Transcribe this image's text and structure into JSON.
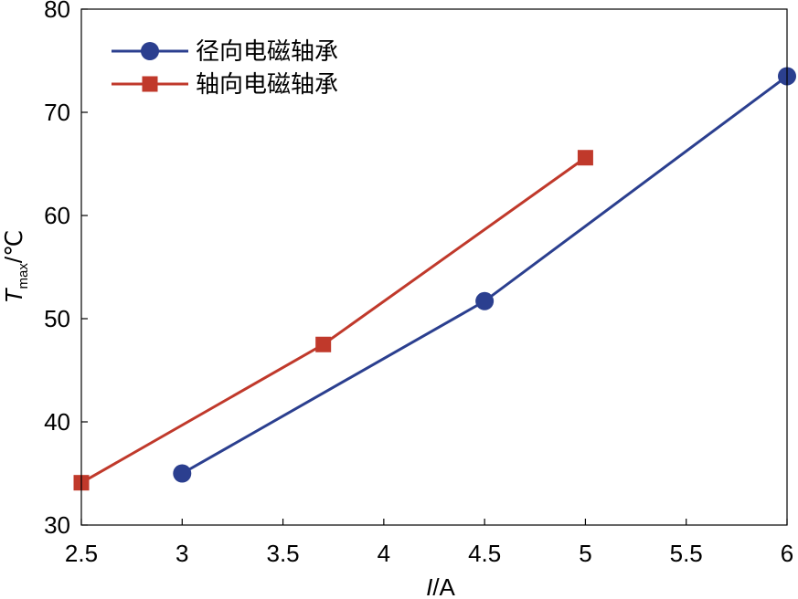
{
  "chart_data": {
    "type": "line",
    "xlim": [
      2.5,
      6
    ],
    "ylim": [
      30,
      80
    ],
    "x_ticks": [
      "2.5",
      "3",
      "3.5",
      "4",
      "4.5",
      "5",
      "5.5",
      "6"
    ],
    "y_ticks": [
      "30",
      "40",
      "50",
      "60",
      "70",
      "80"
    ],
    "xlabel": {
      "var": "I",
      "unit": "/A"
    },
    "ylabel": {
      "var": "T",
      "sub": "max",
      "unit": "/℃"
    },
    "legend_position": "top-left",
    "grid": false,
    "series": [
      {
        "name": "径向电磁轴承",
        "marker": "circle",
        "color": "#2b3f8f",
        "x": [
          3,
          4.5,
          6
        ],
        "y": [
          35.0,
          51.7,
          73.5
        ]
      },
      {
        "name": "轴向电磁轴承",
        "marker": "square",
        "color": "#c0392b",
        "x": [
          2.5,
          3.7,
          5
        ],
        "y": [
          34.1,
          47.5,
          65.6
        ]
      }
    ]
  }
}
